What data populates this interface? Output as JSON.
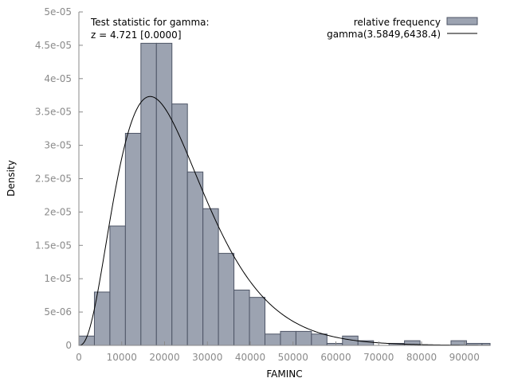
{
  "chart_data": {
    "type": "bar",
    "xlabel": "FAMINC",
    "ylabel": "Density",
    "xlim": [
      0,
      96000
    ],
    "ylim": [
      0,
      5e-05
    ],
    "x_ticks": [
      0,
      10000,
      20000,
      30000,
      40000,
      50000,
      60000,
      70000,
      80000,
      90000
    ],
    "x_tick_labels": [
      "0",
      "10000",
      "20000",
      "30000",
      "40000",
      "50000",
      "60000",
      "70000",
      "80000",
      "90000"
    ],
    "y_ticks": [
      0,
      5e-06,
      1e-05,
      1.5e-05,
      2e-05,
      2.5e-05,
      3e-05,
      3.5e-05,
      4e-05,
      4.5e-05,
      5e-05
    ],
    "y_tick_labels": [
      "0",
      "5e-06",
      "1e-05",
      "1.5e-05",
      "2e-05",
      "2.5e-05",
      "3e-05",
      "3.5e-05",
      "4e-05",
      "4.5e-05",
      "5e-05"
    ],
    "bin_width": 3620,
    "bins_start": [
      0,
      3620,
      7240,
      10860,
      14480,
      18100,
      21720,
      25340,
      28960,
      32580,
      36200,
      39820,
      43440,
      47060,
      50680,
      54300,
      57920,
      61540,
      65160,
      68780,
      72400,
      76020,
      79640,
      83260,
      86880,
      90500,
      94120
    ],
    "values": [
      1.4e-06,
      8e-06,
      1.79e-05,
      3.18e-05,
      4.53e-05,
      4.53e-05,
      3.62e-05,
      2.6e-05,
      2.05e-05,
      1.38e-05,
      8.3e-06,
      7.2e-06,
      1.7e-06,
      2.1e-06,
      2.1e-06,
      1.7e-06,
      3e-07,
      1.4e-06,
      7e-07,
      0,
      3e-07,
      7e-07,
      0,
      0,
      7e-07,
      3e-07,
      3e-07
    ],
    "series": [
      {
        "name": "relative frequency",
        "kind": "histogram",
        "color": "#9ca3b1",
        "edge_color": "#4e5566"
      },
      {
        "name": "gamma(3.5849,6438.4)",
        "kind": "line",
        "color": "#000000",
        "shape": 3.5849,
        "scale": 6438.4
      }
    ],
    "legend": "top-right",
    "grid": false,
    "annotation": {
      "line1": "Test statistic for gamma:",
      "line2": "z = 4.721 [0.0000]"
    }
  }
}
